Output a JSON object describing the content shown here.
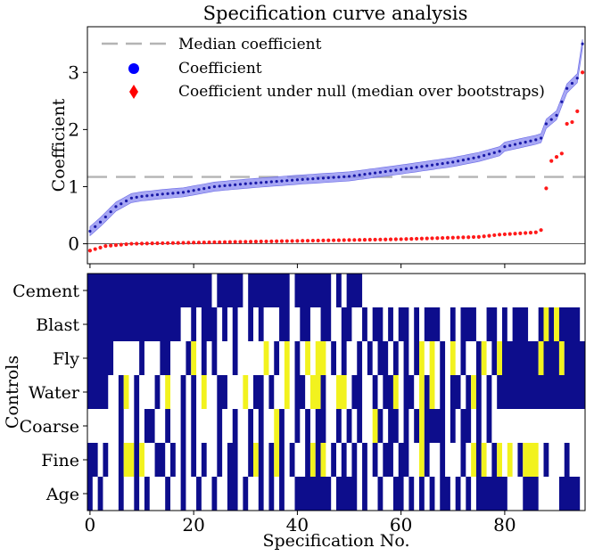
{
  "chart_data": {
    "type": "scatter",
    "title": "Specification curve analysis",
    "top": {
      "ylabel": "Coefficient",
      "yticks": [
        0,
        1,
        2,
        3
      ],
      "ylim": [
        -0.35,
        3.8
      ],
      "xlim": [
        -0.5,
        95.5
      ],
      "median_coefficient": 1.17,
      "legend": {
        "placement": "top-left",
        "entries": [
          "Median coefficient",
          "Coefficient",
          "Coefficient under null (median over bootstraps)"
        ]
      },
      "coefficient_anchors": [
        [
          0,
          0.22
        ],
        [
          2,
          0.38
        ],
        [
          5,
          0.65
        ],
        [
          8,
          0.8
        ],
        [
          10,
          0.83
        ],
        [
          14,
          0.87
        ],
        [
          18,
          0.9
        ],
        [
          24,
          1.0
        ],
        [
          30,
          1.05
        ],
        [
          40,
          1.12
        ],
        [
          50,
          1.18
        ],
        [
          60,
          1.3
        ],
        [
          70,
          1.43
        ],
        [
          75,
          1.52
        ],
        [
          79,
          1.62
        ],
        [
          80,
          1.7
        ],
        [
          86,
          1.82
        ],
        [
          87,
          1.85
        ],
        [
          88,
          2.1
        ],
        [
          90,
          2.25
        ],
        [
          92,
          2.72
        ],
        [
          94,
          2.9
        ],
        [
          95,
          3.5
        ]
      ],
      "ci_half_width": 0.08,
      "null_anchors": [
        [
          0,
          -0.12
        ],
        [
          3,
          -0.04
        ],
        [
          8,
          0.0
        ],
        [
          20,
          0.02
        ],
        [
          40,
          0.05
        ],
        [
          60,
          0.08
        ],
        [
          75,
          0.12
        ],
        [
          79,
          0.16
        ],
        [
          86,
          0.2
        ],
        [
          87,
          0.24
        ]
      ],
      "null_outliers": [
        [
          88,
          0.97
        ],
        [
          89,
          1.45
        ],
        [
          90,
          1.52
        ],
        [
          91,
          1.58
        ],
        [
          92,
          2.1
        ],
        [
          93,
          2.13
        ],
        [
          94,
          2.32
        ],
        [
          95,
          3.0
        ]
      ]
    },
    "bottom": {
      "ylabel": "Controls",
      "xlabel": "Specification No.",
      "xticks": [
        0,
        20,
        40,
        60,
        80
      ],
      "xlim": [
        -0.5,
        95.5
      ],
      "rows": [
        "Cement",
        "Blast",
        "Fly",
        "Water",
        "Coarse",
        "Fine",
        "Age"
      ],
      "colors": {
        "included": "#0d0d8c",
        "highlight": "#f2f21e",
        "excluded": "#ffffff"
      },
      "matrix": {
        "Cement": [
          [
            0,
            23,
            "included"
          ],
          [
            25,
            29,
            "included"
          ],
          [
            31,
            38,
            "included"
          ],
          [
            40,
            46,
            "included"
          ],
          [
            48,
            48,
            "included"
          ],
          [
            50,
            52,
            "included"
          ]
        ],
        "Blast": [
          [
            0,
            17,
            "included"
          ],
          [
            20,
            20,
            "included"
          ],
          [
            22,
            24,
            "included"
          ],
          [
            26,
            26,
            "included"
          ],
          [
            28,
            28,
            "included"
          ],
          [
            31,
            31,
            "included"
          ],
          [
            33,
            33,
            "included"
          ],
          [
            37,
            38,
            "included"
          ],
          [
            41,
            42,
            "included"
          ],
          [
            45,
            46,
            "included"
          ],
          [
            49,
            50,
            "included"
          ],
          [
            53,
            53,
            "included"
          ],
          [
            55,
            56,
            "included"
          ],
          [
            58,
            58,
            "included"
          ],
          [
            60,
            61,
            "included"
          ],
          [
            63,
            63,
            "included"
          ],
          [
            65,
            67,
            "included"
          ],
          [
            70,
            70,
            "included"
          ],
          [
            72,
            74,
            "included"
          ],
          [
            77,
            78,
            "included"
          ],
          [
            80,
            80,
            "included"
          ],
          [
            82,
            84,
            "included"
          ],
          [
            87,
            87,
            "included"
          ],
          [
            88,
            88,
            "highlight"
          ],
          [
            89,
            89,
            "included"
          ],
          [
            90,
            90,
            "highlight"
          ],
          [
            91,
            94,
            "included"
          ]
        ],
        "Fly": [
          [
            0,
            4,
            "included"
          ],
          [
            10,
            10,
            "included"
          ],
          [
            14,
            15,
            "included"
          ],
          [
            19,
            19,
            "included"
          ],
          [
            20,
            20,
            "highlight"
          ],
          [
            22,
            22,
            "included"
          ],
          [
            24,
            24,
            "included"
          ],
          [
            28,
            28,
            "included"
          ],
          [
            34,
            34,
            "highlight"
          ],
          [
            36,
            36,
            "included"
          ],
          [
            38,
            38,
            "highlight"
          ],
          [
            40,
            40,
            "included"
          ],
          [
            42,
            42,
            "highlight"
          ],
          [
            44,
            45,
            "highlight"
          ],
          [
            47,
            47,
            "included"
          ],
          [
            49,
            49,
            "included"
          ],
          [
            52,
            52,
            "included"
          ],
          [
            54,
            54,
            "included"
          ],
          [
            56,
            57,
            "included"
          ],
          [
            59,
            59,
            "included"
          ],
          [
            61,
            61,
            "included"
          ],
          [
            63,
            63,
            "included"
          ],
          [
            64,
            64,
            "highlight"
          ],
          [
            66,
            66,
            "highlight"
          ],
          [
            68,
            68,
            "included"
          ],
          [
            70,
            70,
            "highlight"
          ],
          [
            72,
            72,
            "included"
          ],
          [
            75,
            75,
            "included"
          ],
          [
            76,
            76,
            "highlight"
          ],
          [
            78,
            78,
            "included"
          ],
          [
            79,
            79,
            "highlight"
          ],
          [
            80,
            86,
            "included"
          ],
          [
            87,
            87,
            "highlight"
          ],
          [
            88,
            90,
            "included"
          ],
          [
            91,
            91,
            "highlight"
          ],
          [
            92,
            95,
            "included"
          ]
        ],
        "Water": [
          [
            0,
            3,
            "included"
          ],
          [
            6,
            6,
            "included"
          ],
          [
            7,
            7,
            "highlight"
          ],
          [
            9,
            9,
            "included"
          ],
          [
            13,
            13,
            "included"
          ],
          [
            15,
            15,
            "highlight"
          ],
          [
            18,
            18,
            "included"
          ],
          [
            20,
            20,
            "included"
          ],
          [
            22,
            22,
            "highlight"
          ],
          [
            25,
            26,
            "included"
          ],
          [
            30,
            30,
            "highlight"
          ],
          [
            32,
            33,
            "included"
          ],
          [
            35,
            35,
            "included"
          ],
          [
            38,
            38,
            "highlight"
          ],
          [
            40,
            41,
            "included"
          ],
          [
            43,
            44,
            "highlight"
          ],
          [
            45,
            45,
            "included"
          ],
          [
            48,
            49,
            "highlight"
          ],
          [
            51,
            52,
            "included"
          ],
          [
            55,
            55,
            "included"
          ],
          [
            57,
            58,
            "included"
          ],
          [
            59,
            59,
            "highlight"
          ],
          [
            61,
            62,
            "included"
          ],
          [
            64,
            64,
            "highlight"
          ],
          [
            65,
            65,
            "included"
          ],
          [
            66,
            66,
            "highlight"
          ],
          [
            68,
            68,
            "included"
          ],
          [
            70,
            71,
            "included"
          ],
          [
            73,
            73,
            "included"
          ],
          [
            74,
            74,
            "highlight"
          ],
          [
            75,
            75,
            "included"
          ],
          [
            77,
            77,
            "included"
          ],
          [
            79,
            95,
            "included"
          ]
        ],
        "Coarse": [
          [
            6,
            6,
            "included"
          ],
          [
            9,
            9,
            "included"
          ],
          [
            11,
            12,
            "included"
          ],
          [
            15,
            15,
            "included"
          ],
          [
            18,
            18,
            "included"
          ],
          [
            20,
            20,
            "included"
          ],
          [
            25,
            25,
            "included"
          ],
          [
            28,
            28,
            "included"
          ],
          [
            31,
            31,
            "included"
          ],
          [
            33,
            33,
            "included"
          ],
          [
            36,
            36,
            "highlight"
          ],
          [
            37,
            37,
            "included"
          ],
          [
            40,
            40,
            "included"
          ],
          [
            42,
            42,
            "included"
          ],
          [
            44,
            45,
            "included"
          ],
          [
            48,
            48,
            "included"
          ],
          [
            50,
            50,
            "included"
          ],
          [
            52,
            52,
            "included"
          ],
          [
            55,
            55,
            "highlight"
          ],
          [
            56,
            56,
            "included"
          ],
          [
            58,
            59,
            "included"
          ],
          [
            61,
            61,
            "included"
          ],
          [
            63,
            63,
            "included"
          ],
          [
            64,
            64,
            "highlight"
          ],
          [
            65,
            68,
            "included"
          ],
          [
            70,
            70,
            "included"
          ],
          [
            72,
            73,
            "included"
          ],
          [
            75,
            75,
            "included"
          ],
          [
            77,
            77,
            "included"
          ]
        ],
        "Fine": [
          [
            0,
            1,
            "included"
          ],
          [
            3,
            3,
            "included"
          ],
          [
            6,
            6,
            "included"
          ],
          [
            7,
            8,
            "highlight"
          ],
          [
            9,
            9,
            "included"
          ],
          [
            10,
            10,
            "highlight"
          ],
          [
            13,
            14,
            "included"
          ],
          [
            16,
            16,
            "included"
          ],
          [
            18,
            18,
            "included"
          ],
          [
            20,
            20,
            "included"
          ],
          [
            22,
            22,
            "included"
          ],
          [
            25,
            25,
            "included"
          ],
          [
            27,
            28,
            "included"
          ],
          [
            31,
            31,
            "included"
          ],
          [
            32,
            32,
            "highlight"
          ],
          [
            33,
            33,
            "included"
          ],
          [
            35,
            35,
            "included"
          ],
          [
            36,
            36,
            "highlight"
          ],
          [
            37,
            37,
            "included"
          ],
          [
            39,
            39,
            "included"
          ],
          [
            42,
            42,
            "included"
          ],
          [
            43,
            43,
            "highlight"
          ],
          [
            44,
            44,
            "included"
          ],
          [
            45,
            45,
            "highlight"
          ],
          [
            47,
            47,
            "included"
          ],
          [
            49,
            49,
            "included"
          ],
          [
            51,
            51,
            "included"
          ],
          [
            53,
            53,
            "included"
          ],
          [
            55,
            55,
            "included"
          ],
          [
            57,
            58,
            "included"
          ],
          [
            60,
            61,
            "included"
          ],
          [
            64,
            64,
            "highlight"
          ],
          [
            65,
            65,
            "included"
          ],
          [
            68,
            68,
            "included"
          ],
          [
            72,
            72,
            "included"
          ],
          [
            74,
            74,
            "highlight"
          ],
          [
            75,
            75,
            "included"
          ],
          [
            76,
            76,
            "highlight"
          ],
          [
            78,
            78,
            "included"
          ],
          [
            79,
            79,
            "highlight"
          ],
          [
            81,
            81,
            "highlight"
          ],
          [
            83,
            83,
            "included"
          ],
          [
            84,
            86,
            "highlight"
          ],
          [
            88,
            88,
            "included"
          ],
          [
            92,
            92,
            "included"
          ]
        ],
        "Age": [
          [
            0,
            0,
            "included"
          ],
          [
            2,
            2,
            "included"
          ],
          [
            6,
            6,
            "included"
          ],
          [
            9,
            9,
            "included"
          ],
          [
            11,
            11,
            "included"
          ],
          [
            15,
            15,
            "included"
          ],
          [
            18,
            18,
            "included"
          ],
          [
            21,
            21,
            "included"
          ],
          [
            24,
            24,
            "included"
          ],
          [
            27,
            28,
            "included"
          ],
          [
            30,
            30,
            "included"
          ],
          [
            33,
            33,
            "included"
          ],
          [
            35,
            35,
            "included"
          ],
          [
            37,
            37,
            "included"
          ],
          [
            40,
            46,
            "included"
          ],
          [
            48,
            51,
            "included"
          ],
          [
            53,
            53,
            "included"
          ],
          [
            56,
            56,
            "included"
          ],
          [
            59,
            60,
            "included"
          ],
          [
            62,
            62,
            "included"
          ],
          [
            64,
            64,
            "included"
          ],
          [
            66,
            66,
            "included"
          ],
          [
            68,
            69,
            "included"
          ],
          [
            71,
            71,
            "included"
          ],
          [
            73,
            73,
            "included"
          ],
          [
            75,
            80,
            "included"
          ],
          [
            84,
            86,
            "included"
          ],
          [
            91,
            94,
            "included"
          ]
        ]
      }
    }
  }
}
